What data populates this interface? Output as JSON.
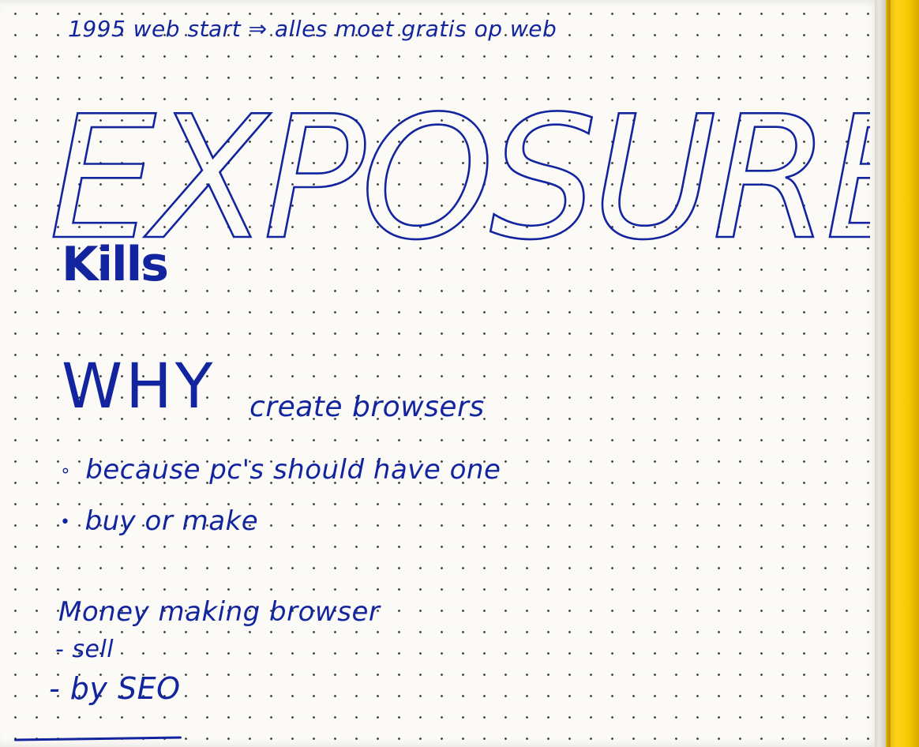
{
  "notes": {
    "header_line": "1995 web start ⇒ alles moet gratis op web",
    "title_big": "EXPOSURE",
    "title_small": "Kills",
    "why": {
      "word": "WHY",
      "rest": "create browsers"
    },
    "bullets": [
      {
        "marker": "∘",
        "text": "because pc's should have one"
      },
      {
        "marker": "•",
        "text": "buy or make"
      }
    ],
    "money_heading": "Money making browser",
    "money_items": [
      "- sell",
      "- by SEO"
    ]
  },
  "colors": {
    "ink": "#12249e",
    "paper": "#fbfaf7",
    "ribbon": "#ffd21a"
  }
}
